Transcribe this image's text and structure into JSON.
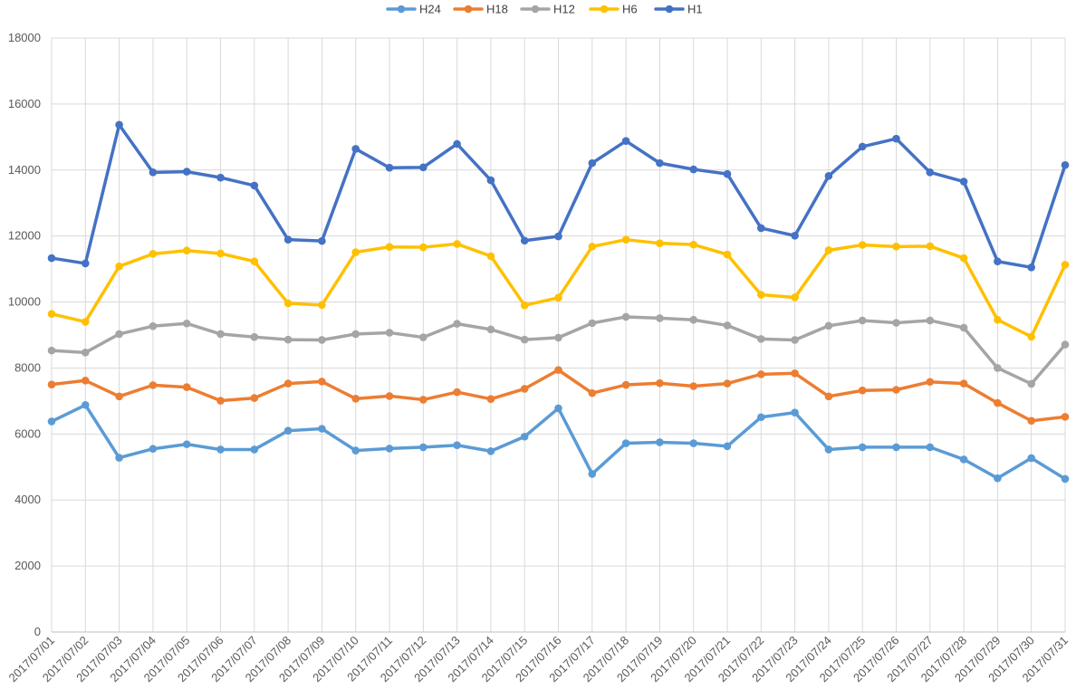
{
  "chart_data": {
    "type": "line",
    "title": "",
    "xlabel": "",
    "ylabel": "",
    "ylim": [
      0,
      18000
    ],
    "yticks": [
      0,
      2000,
      4000,
      6000,
      8000,
      10000,
      12000,
      14000,
      16000,
      18000
    ],
    "grid": true,
    "legend_position": "top",
    "categories": [
      "2017/07/01",
      "2017/07/02",
      "2017/07/03",
      "2017/07/04",
      "2017/07/05",
      "2017/07/06",
      "2017/07/07",
      "2017/07/08",
      "2017/07/09",
      "2017/07/10",
      "2017/07/11",
      "2017/07/12",
      "2017/07/13",
      "2017/07/14",
      "2017/07/15",
      "2017/07/16",
      "2017/07/17",
      "2017/07/18",
      "2017/07/19",
      "2017/07/20",
      "2017/07/21",
      "2017/07/22",
      "2017/07/23",
      "2017/07/24",
      "2017/07/25",
      "2017/07/26",
      "2017/07/27",
      "2017/07/28",
      "2017/07/29",
      "2017/07/30",
      "2017/07/31"
    ],
    "series": [
      {
        "name": "H24",
        "color": "#5b9bd5",
        "values": [
          6380,
          6880,
          5280,
          5550,
          5690,
          5530,
          5530,
          6100,
          6160,
          5500,
          5560,
          5600,
          5660,
          5480,
          5920,
          6780,
          4790,
          5720,
          5750,
          5720,
          5630,
          6510,
          6650,
          5530,
          5600,
          5600,
          5600,
          5230,
          4660,
          5270,
          4640
        ]
      },
      {
        "name": "H18",
        "color": "#ed7d31",
        "values": [
          7500,
          7620,
          7140,
          7480,
          7420,
          7010,
          7090,
          7530,
          7590,
          7070,
          7150,
          7040,
          7270,
          7060,
          7370,
          7940,
          7240,
          7490,
          7540,
          7450,
          7530,
          7810,
          7840,
          7140,
          7320,
          7340,
          7580,
          7530,
          6940,
          6400,
          6520
        ]
      },
      {
        "name": "H12",
        "color": "#a5a5a5",
        "values": [
          8530,
          8470,
          9030,
          9270,
          9350,
          9030,
          8940,
          8860,
          8850,
          9030,
          9070,
          8930,
          9340,
          9170,
          8860,
          8920,
          9360,
          9550,
          9510,
          9460,
          9290,
          8880,
          8850,
          9280,
          9440,
          9370,
          9440,
          9220,
          8000,
          7520,
          8710
        ]
      },
      {
        "name": "H6",
        "color": "#ffc000",
        "values": [
          9640,
          9400,
          11080,
          11460,
          11560,
          11470,
          11230,
          9960,
          9910,
          11510,
          11670,
          11660,
          11760,
          11390,
          9900,
          10130,
          11680,
          11890,
          11780,
          11740,
          11440,
          10220,
          10140,
          11570,
          11730,
          11680,
          11690,
          11330,
          9460,
          8950,
          11130
        ]
      },
      {
        "name": "H1",
        "color": "#4472c4",
        "values": [
          11330,
          11170,
          15370,
          13930,
          13950,
          13770,
          13530,
          11890,
          11850,
          14640,
          14070,
          14080,
          14790,
          13690,
          11860,
          11990,
          14210,
          14880,
          14210,
          14020,
          13880,
          12240,
          12010,
          13820,
          14710,
          14950,
          13930,
          13650,
          11230,
          11050,
          14150
        ]
      }
    ]
  }
}
